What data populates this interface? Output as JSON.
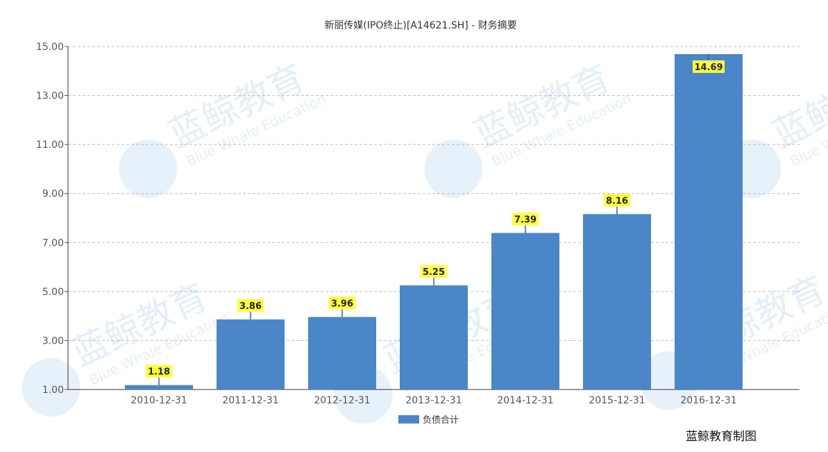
{
  "chart_data": {
    "type": "bar",
    "title": "新丽传媒(IPO终止)[A14621.SH] - 财务摘要",
    "categories": [
      "2010-12-31",
      "2011-12-31",
      "2012-12-31",
      "2013-12-31",
      "2014-12-31",
      "2015-12-31",
      "2016-12-31"
    ],
    "series": [
      {
        "name": "负债合计",
        "values": [
          1.18,
          3.86,
          3.96,
          5.25,
          7.39,
          8.16,
          14.69
        ],
        "color": "#4a86c8"
      }
    ],
    "data_labels": [
      "1.18",
      "3.86",
      "3.96",
      "5.25",
      "7.39",
      "8.16",
      "14.69"
    ],
    "ylim": [
      1.0,
      15.0
    ],
    "yticks": [
      "1.00",
      "3.00",
      "5.00",
      "7.00",
      "9.00",
      "11.00",
      "13.00",
      "15.00"
    ],
    "ytick_values": [
      1,
      3,
      5,
      7,
      9,
      11,
      13,
      15
    ],
    "grid": true,
    "legend_placement": "bottom-center",
    "label_bg_color": "#ffff33",
    "grid_color": "#bbbbbb"
  },
  "footer": {
    "credit": "蓝鲸教育制图"
  },
  "watermark": {
    "cn": "蓝鲸教育",
    "en": "Blue Whale Education",
    "color": "#cfe3f3"
  }
}
